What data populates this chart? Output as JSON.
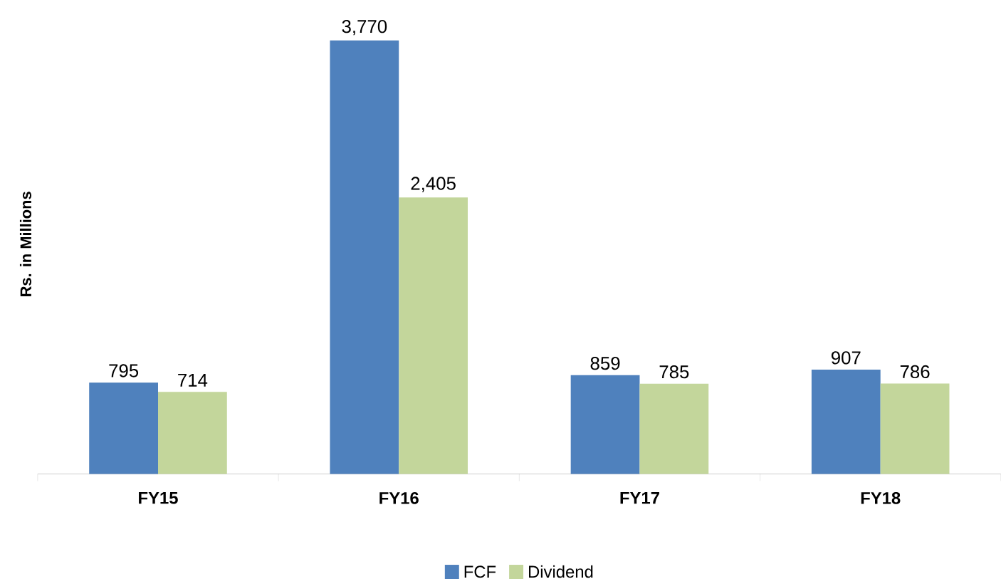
{
  "chart_data": {
    "type": "bar",
    "ylabel": "Rs. in Millions",
    "categories": [
      "FY15",
      "FY16",
      "FY17",
      "FY18"
    ],
    "series": [
      {
        "name": "FCF",
        "color": "#4f81bd",
        "values": [
          795,
          3770,
          859,
          907
        ],
        "value_labels": [
          "795",
          "3,770",
          "859",
          "907"
        ]
      },
      {
        "name": "Dividend",
        "color": "#c3d69b",
        "values": [
          714,
          2405,
          785,
          786
        ],
        "value_labels": [
          "714",
          "2,405",
          "785",
          "786"
        ]
      }
    ],
    "legend": "bottom"
  }
}
